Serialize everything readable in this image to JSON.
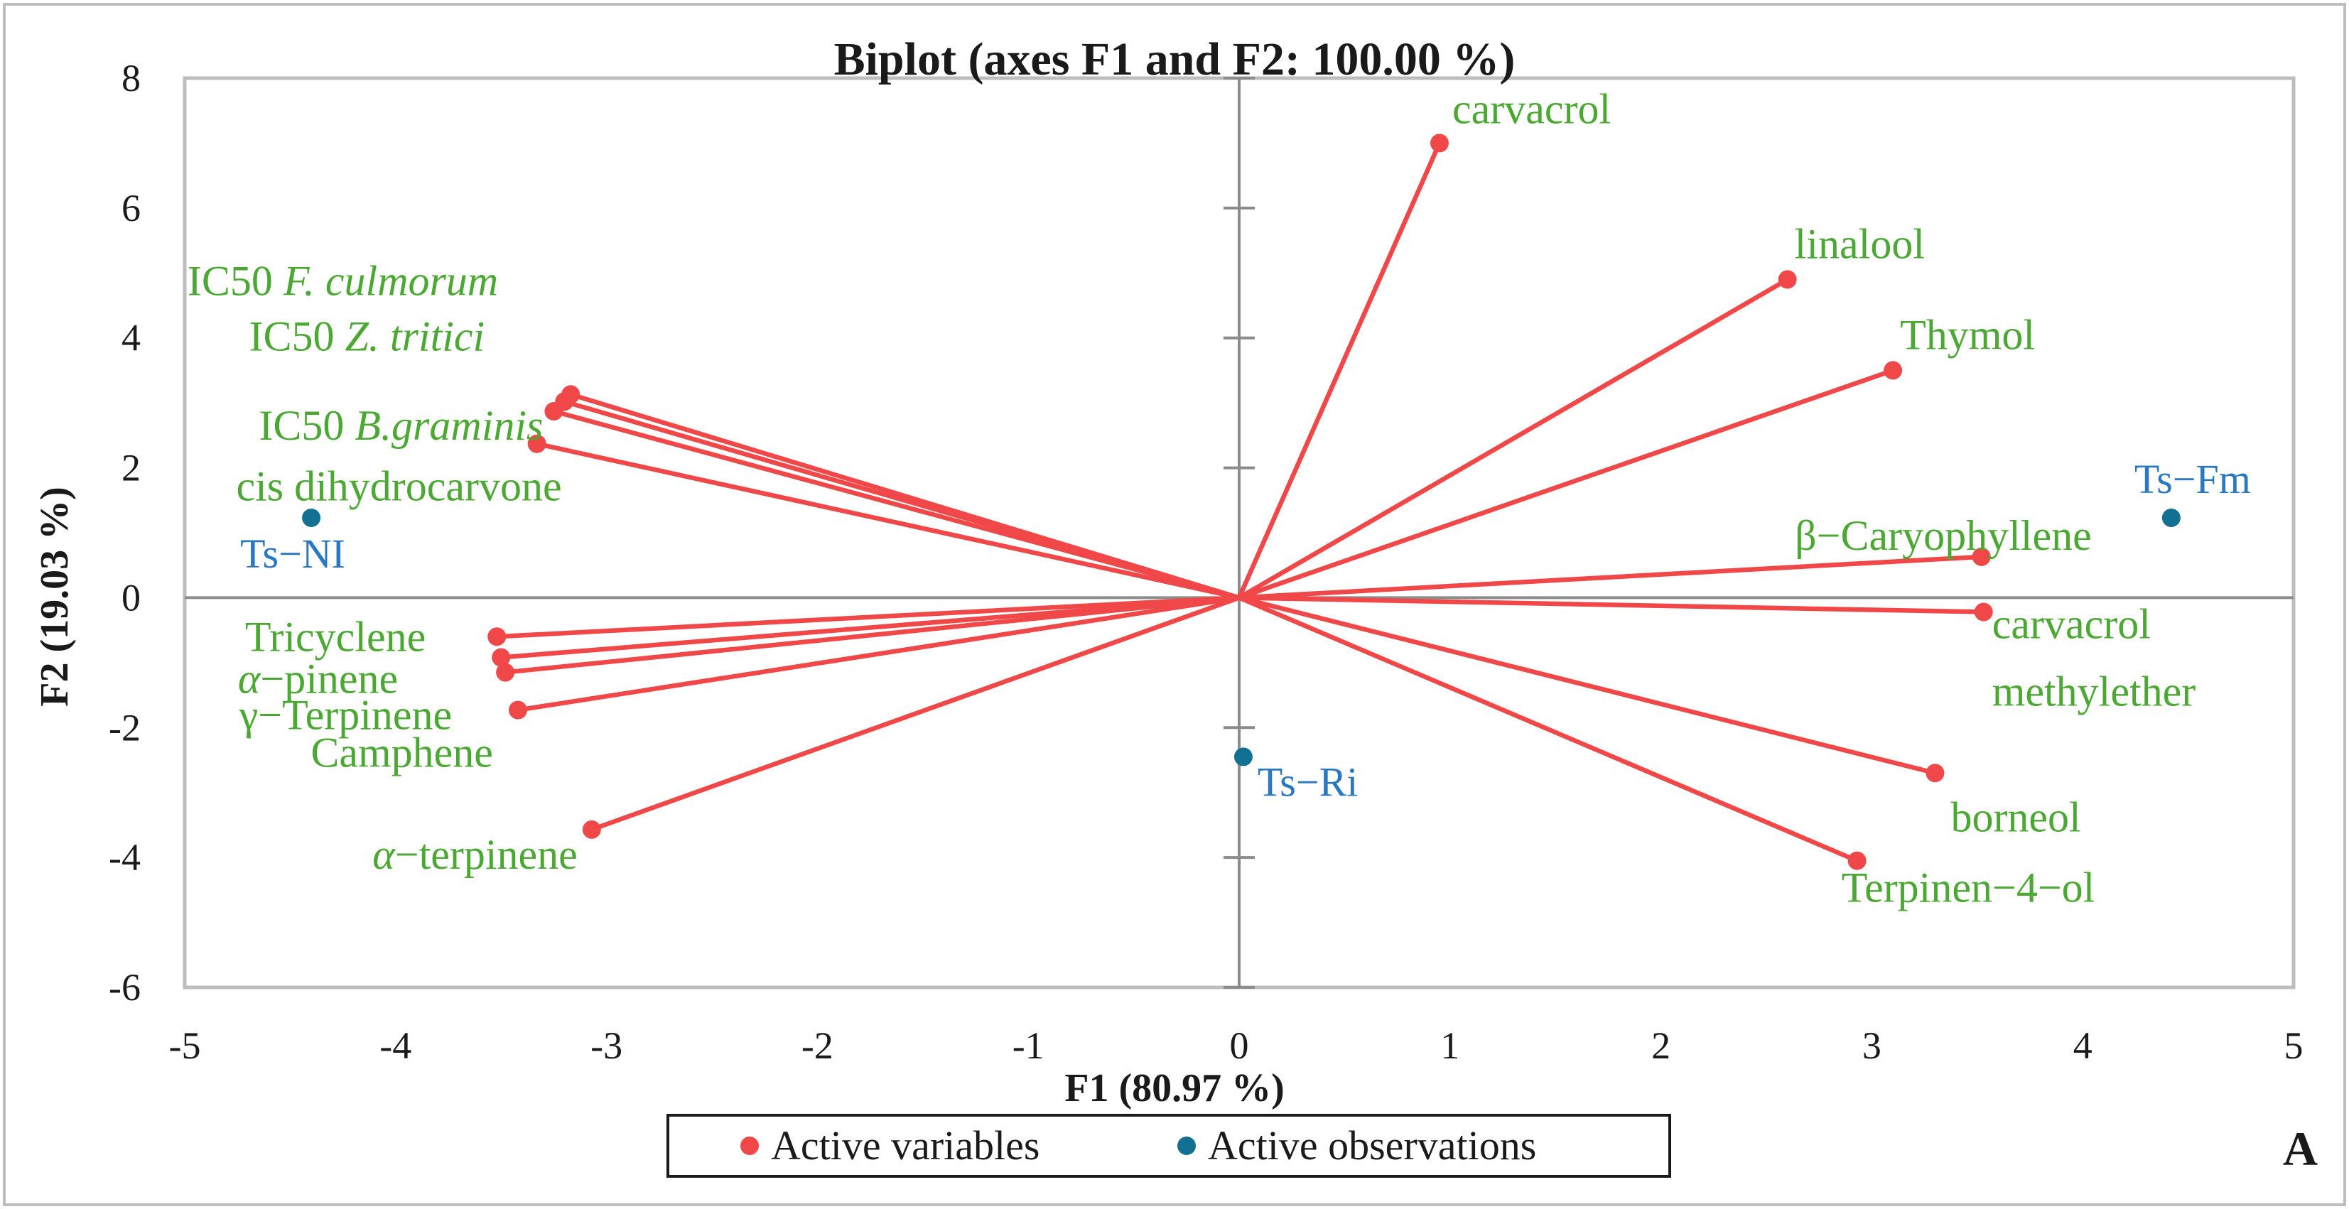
{
  "chart_data": {
    "type": "scatter",
    "title": "Biplot (axes F1 and F2: 100.00 %)",
    "xlabel": "F1 (80.97 %)",
    "ylabel": "F2 (19.03 %)",
    "xlim": [
      -5,
      5
    ],
    "ylim": [
      -6,
      8
    ],
    "x_ticks": [
      "-5",
      "-4",
      "-3",
      "-2",
      "-1",
      "0",
      "1",
      "2",
      "3",
      "4",
      "5"
    ],
    "y_ticks": [
      "8",
      "6",
      "4",
      "2",
      "0",
      "-2",
      "-4",
      "-6"
    ],
    "panel_label": "A",
    "legend": [
      {
        "label": "Active variables",
        "color": "#f04848"
      },
      {
        "label": "Active observations",
        "color": "#127092"
      }
    ],
    "variables": [
      {
        "name": "carvacrol",
        "x": 0.95,
        "y": 7.0
      },
      {
        "name": "linalool",
        "x": 2.6,
        "y": 4.9
      },
      {
        "name": "Thymol",
        "x": 3.1,
        "y": 3.5
      },
      {
        "name": "β−Caryophyllene",
        "x": 3.52,
        "y": 0.63
      },
      {
        "name": "carvacrol methylether",
        "label_lines": [
          "carvacrol",
          "methylether"
        ],
        "x": 3.53,
        "y": -0.22
      },
      {
        "name": "borneol",
        "x": 3.3,
        "y": -2.7
      },
      {
        "name": "Terpinen−4−ol",
        "x": 2.93,
        "y": -4.05
      },
      {
        "name": "IC50 F. culmorum",
        "prefix": "IC50 ",
        "italic": "F. culmorum",
        "x": -3.17,
        "y": 3.13
      },
      {
        "name": "IC50 Z. tritici",
        "prefix": "IC50 ",
        "italic": "Z. tritici",
        "x": -3.2,
        "y": 3.02
      },
      {
        "name": "IC50 B.graminis",
        "prefix": "IC50 ",
        "italic": "B.graminis",
        "x": -3.25,
        "y": 2.87
      },
      {
        "name": "cis dihydrocarvone",
        "x": -3.33,
        "y": 2.37
      },
      {
        "name": "Tricyclene",
        "x": -3.52,
        "y": -0.6
      },
      {
        "name": "α−pinene",
        "greek": "α",
        "rest": "−pinene",
        "x": -3.5,
        "y": -0.92
      },
      {
        "name": "γ−Terpinene",
        "x": -3.48,
        "y": -1.15
      },
      {
        "name": "Camphene",
        "x": -3.42,
        "y": -1.73
      },
      {
        "name": "α−terpinene",
        "greek": "α",
        "rest": "−terpinene",
        "x": -3.07,
        "y": -3.57
      }
    ],
    "observations": [
      {
        "name": "Ts−Fm",
        "x": 4.42,
        "y": 1.23
      },
      {
        "name": "Ts−NI",
        "x": -4.4,
        "y": 1.23
      },
      {
        "name": "Ts−Ri",
        "x": 0.02,
        "y": -2.45
      }
    ],
    "colors": {
      "variable_line": "#f04848",
      "variable_label": "#4aa833",
      "observation_point": "#127092",
      "observation_label": "#2a78c2",
      "axis": "#8c8c8c",
      "text": "#1a1a1a"
    }
  }
}
